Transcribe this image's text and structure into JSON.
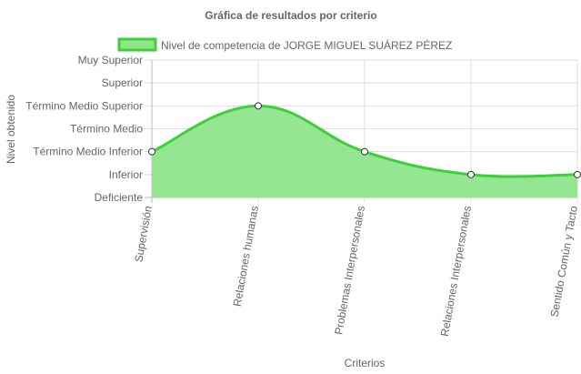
{
  "chart_data": {
    "type": "area",
    "title": "Gráfica de resultados por criterio",
    "xlabel": "Criterios",
    "ylabel": "Nivel obtenido",
    "y_levels": [
      "Deficiente",
      "Inferior",
      "Término Medio Inferior",
      "Término Medio",
      "Término Medio Superior",
      "Superior",
      "Muy Superior"
    ],
    "categories": [
      "Supervisión",
      "Relaciones humanas",
      "Problemas Interpersonales",
      "Relaciones Interpersonales",
      "Sentido Común y Tacto"
    ],
    "series": [
      {
        "name": "Nivel de competencia de JORGE MIGUEL SUÁREZ PÉREZ",
        "values": [
          2,
          4,
          2,
          1,
          1
        ],
        "value_labels": [
          "Término Medio Inferior",
          "Término Medio Superior",
          "Término Medio Inferior",
          "Inferior",
          "Inferior"
        ]
      }
    ],
    "ylim": [
      0,
      6
    ],
    "grid": true,
    "legend_position": "top",
    "colors": {
      "fill": "#8fe58c",
      "line": "#3fcf3a",
      "point_fill": "#ffffff",
      "point_stroke": "#333333",
      "grid": "#dddddd",
      "text": "#666666"
    }
  }
}
